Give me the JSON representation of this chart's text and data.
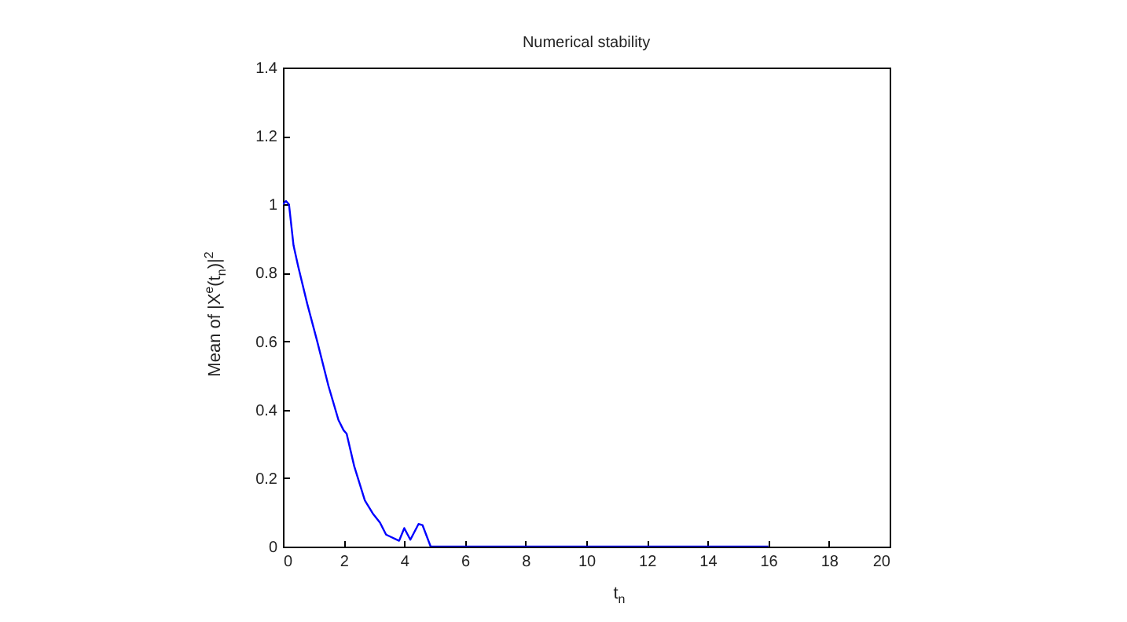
{
  "chart_data": {
    "type": "line",
    "title": "Numerical stability",
    "xlabel": "t$_{n}$",
    "ylabel": "Mean of |X$^{e}$(t$_{n}$)|$^{2}$",
    "x": [
      0,
      0.1,
      0.2,
      0.35,
      0.5,
      0.8,
      1.13,
      1.5,
      1.83,
      2.0,
      2.1,
      2.35,
      2.7,
      2.96,
      3.2,
      3.4,
      3.83,
      4.0,
      4.2,
      4.47,
      4.6,
      4.87,
      6,
      8,
      10,
      12,
      14,
      16
    ],
    "series": [
      {
        "color": "#0000ff",
        "values": [
          1.0,
          1.01,
          1.0,
          0.88,
          0.82,
          0.71,
          0.6,
          0.47,
          0.37,
          0.34,
          0.33,
          0.235,
          0.135,
          0.097,
          0.07,
          0.035,
          0.017,
          0.054,
          0.02,
          0.066,
          0.063,
          0,
          0,
          0,
          0,
          0,
          0,
          0
        ]
      }
    ],
    "xlim": [
      0,
      20
    ],
    "xticks": [
      0,
      2,
      4,
      6,
      8,
      10,
      12,
      14,
      16,
      18,
      20
    ],
    "ylim": [
      0,
      1.4
    ],
    "yticks": [
      0,
      0.2,
      0.4,
      0.6,
      0.8,
      1,
      1.2,
      1.4
    ],
    "grid": false,
    "marker": "none",
    "line_style": "solid"
  }
}
